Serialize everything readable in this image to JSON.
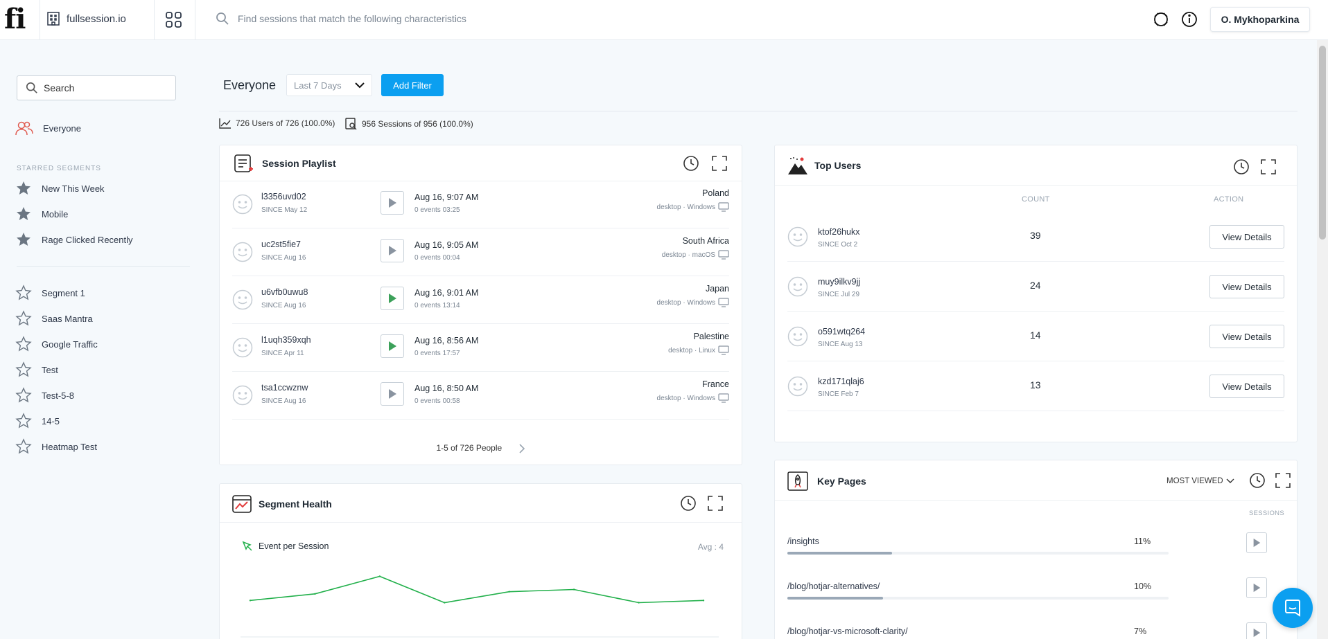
{
  "topbar": {
    "logo": "fi",
    "org_name": "fullsession.io",
    "search_placeholder": "Find sessions that match the following characteristics",
    "user_name": "O. Mykhoparkina"
  },
  "sidebar": {
    "search_placeholder": "Search",
    "everyone_label": "Everyone",
    "starred_heading": "STARRED SEGMENTS",
    "starred": [
      {
        "label": "New This Week"
      },
      {
        "label": "Mobile"
      },
      {
        "label": "Rage Clicked Recently"
      }
    ],
    "segments": [
      {
        "label": "Segment 1"
      },
      {
        "label": "Saas Mantra"
      },
      {
        "label": "Google Traffic"
      },
      {
        "label": "Test"
      },
      {
        "label": "Test-5-8"
      },
      {
        "label": "14-5"
      },
      {
        "label": "Heatmap Test"
      }
    ]
  },
  "header": {
    "segment_title": "Everyone",
    "date_range": "Last 7 Days",
    "add_filter_label": "Add Filter",
    "users_stat": "726 Users of 726 (100.0%)",
    "sessions_stat": "956 Sessions of 956 (100.0%)"
  },
  "playlist": {
    "title": "Session Playlist",
    "sessions": [
      {
        "user": "l3356uvd02",
        "since": "SINCE May 12",
        "time": "Aug 16, 9:07 AM",
        "meta": "0 events  03:25",
        "country": "Poland",
        "device": "desktop · Windows",
        "played": false
      },
      {
        "user": "uc2st5fie7",
        "since": "SINCE Aug 16",
        "time": "Aug 16, 9:05 AM",
        "meta": "0 events  00:04",
        "country": "South Africa",
        "device": "desktop · macOS",
        "played": false
      },
      {
        "user": "u6vfb0uwu8",
        "since": "SINCE Aug 16",
        "time": "Aug 16, 9:01 AM",
        "meta": "0 events  13:14",
        "country": "Japan",
        "device": "desktop · Windows",
        "played": true
      },
      {
        "user": "l1uqh359xqh",
        "since": "SINCE Apr 11",
        "time": "Aug 16, 8:56 AM",
        "meta": "0 events  17:57",
        "country": "Palestine",
        "device": "desktop · Linux",
        "played": true
      },
      {
        "user": "tsa1ccwznw",
        "since": "SINCE Aug 16",
        "time": "Aug 16, 8:50 AM",
        "meta": "0 events  00:58",
        "country": "France",
        "device": "desktop · Windows",
        "played": false
      }
    ],
    "pager": "1-5 of 726 People"
  },
  "top_users": {
    "title": "Top Users",
    "col_count": "COUNT",
    "col_action": "ACTION",
    "action_label": "View Details",
    "users": [
      {
        "user": "ktof26hukx",
        "since": "SINCE Oct 2",
        "count": "39"
      },
      {
        "user": "muy9ilkv9jj",
        "since": "SINCE Jul 29",
        "count": "24"
      },
      {
        "user": "o591wtq264",
        "since": "SINCE Aug 13",
        "count": "14"
      },
      {
        "user": "kzd171qlaj6",
        "since": "SINCE Feb 7",
        "count": "13"
      }
    ]
  },
  "segment_health": {
    "title": "Segment Health",
    "metric_label": "Event per Session",
    "avg_label": "Avg : 4",
    "chart_data": {
      "type": "line",
      "series": [
        {
          "values": [
            4,
            4.3,
            5.1,
            3.9,
            4.4,
            4.5,
            3.9,
            4.0
          ]
        }
      ],
      "color": "#22b04b"
    }
  },
  "key_pages": {
    "title": "Key Pages",
    "sort_label": "MOST VIEWED",
    "col_sessions": "SESSIONS",
    "pages": [
      {
        "url": "/insights",
        "pct": "11%",
        "value": 0.11
      },
      {
        "url": "/blog/hotjar-alternatives/",
        "pct": "10%",
        "value": 0.1
      },
      {
        "url": "/blog/hotjar-vs-microsoft-clarity/",
        "pct": "7%",
        "value": 0.07
      }
    ]
  },
  "colors": {
    "accent": "#0b9ff0",
    "play_active": "#3ca15a",
    "play_idle": "#8a94a0",
    "chart_line": "#22b04b"
  }
}
